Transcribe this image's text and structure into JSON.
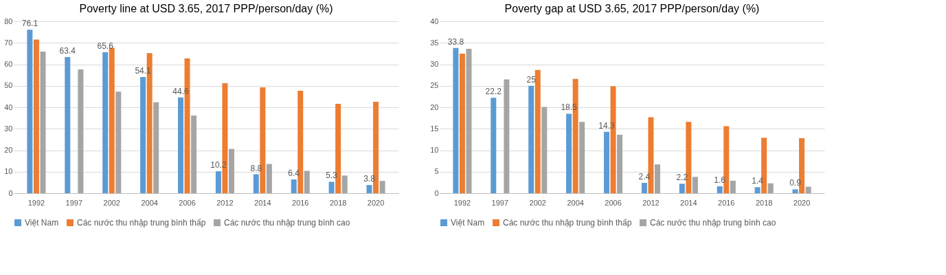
{
  "chart_data": [
    {
      "type": "bar",
      "title": "Poverty line at USD 3.65, 2017 PPP/person/day (%)",
      "categories": [
        "1992",
        "1997",
        "2002",
        "2004",
        "2006",
        "2012",
        "2014",
        "2016",
        "2018",
        "2020"
      ],
      "ylim": [
        0,
        80
      ],
      "yticks": [
        0,
        10,
        20,
        30,
        40,
        50,
        60,
        70,
        80
      ],
      "grid": "y",
      "legend": "bottom",
      "series": [
        {
          "name": "Việt Nam",
          "color": "#5b9bd5",
          "values": [
            76.1,
            63.4,
            65.6,
            54.1,
            44.6,
            10.2,
            8.8,
            6.4,
            5.3,
            3.8
          ],
          "value_labels": [
            "76.1",
            "63.4",
            "65.6",
            "54.1",
            "44.6",
            "10.2",
            "8.8",
            "6.4",
            "5.3",
            "3.8"
          ]
        },
        {
          "name": "Các nước thu nhập trung bình thấp",
          "color": "#ed7d31",
          "values": [
            71.5,
            null,
            67.7,
            65.2,
            62.7,
            51.2,
            49.3,
            47.7,
            41.6,
            42.6
          ]
        },
        {
          "name": "Các nước thu nhập trung bình cao",
          "color": "#a5a5a5",
          "values": [
            65.9,
            57.6,
            47.3,
            42.3,
            36.2,
            20.6,
            13.6,
            10.4,
            8.2,
            5.7
          ]
        }
      ]
    },
    {
      "type": "bar",
      "title": "Poverty gap at USD 3.65, 2017 PPP/person/day (%)",
      "categories": [
        "1992",
        "1997",
        "2002",
        "2004",
        "2006",
        "2012",
        "2014",
        "2016",
        "2018",
        "2020"
      ],
      "ylim": [
        0,
        40
      ],
      "yticks": [
        0,
        5,
        10,
        15,
        20,
        25,
        30,
        35,
        40
      ],
      "grid": "y",
      "legend": "bottom",
      "series": [
        {
          "name": "Việt Nam",
          "color": "#5b9bd5",
          "values": [
            33.8,
            22.2,
            25,
            18.5,
            14.3,
            2.4,
            2.2,
            1.6,
            1.4,
            0.9
          ],
          "value_labels": [
            "33.8",
            "22.2",
            "25",
            "18.5",
            "14.3",
            "2.4",
            "2.2",
            "1.6",
            "1.4",
            "0.9"
          ]
        },
        {
          "name": "Các nước thu nhập trung bình thấp",
          "color": "#ed7d31",
          "values": [
            32.5,
            null,
            28.7,
            26.6,
            24.9,
            17.7,
            16.6,
            15.6,
            12.9,
            12.8
          ]
        },
        {
          "name": "Các nước thu nhập trung bình cao",
          "color": "#a5a5a5",
          "values": [
            33.6,
            26.5,
            20.1,
            16.6,
            13.6,
            6.7,
            3.8,
            2.9,
            2.3,
            1.5
          ]
        }
      ]
    }
  ]
}
